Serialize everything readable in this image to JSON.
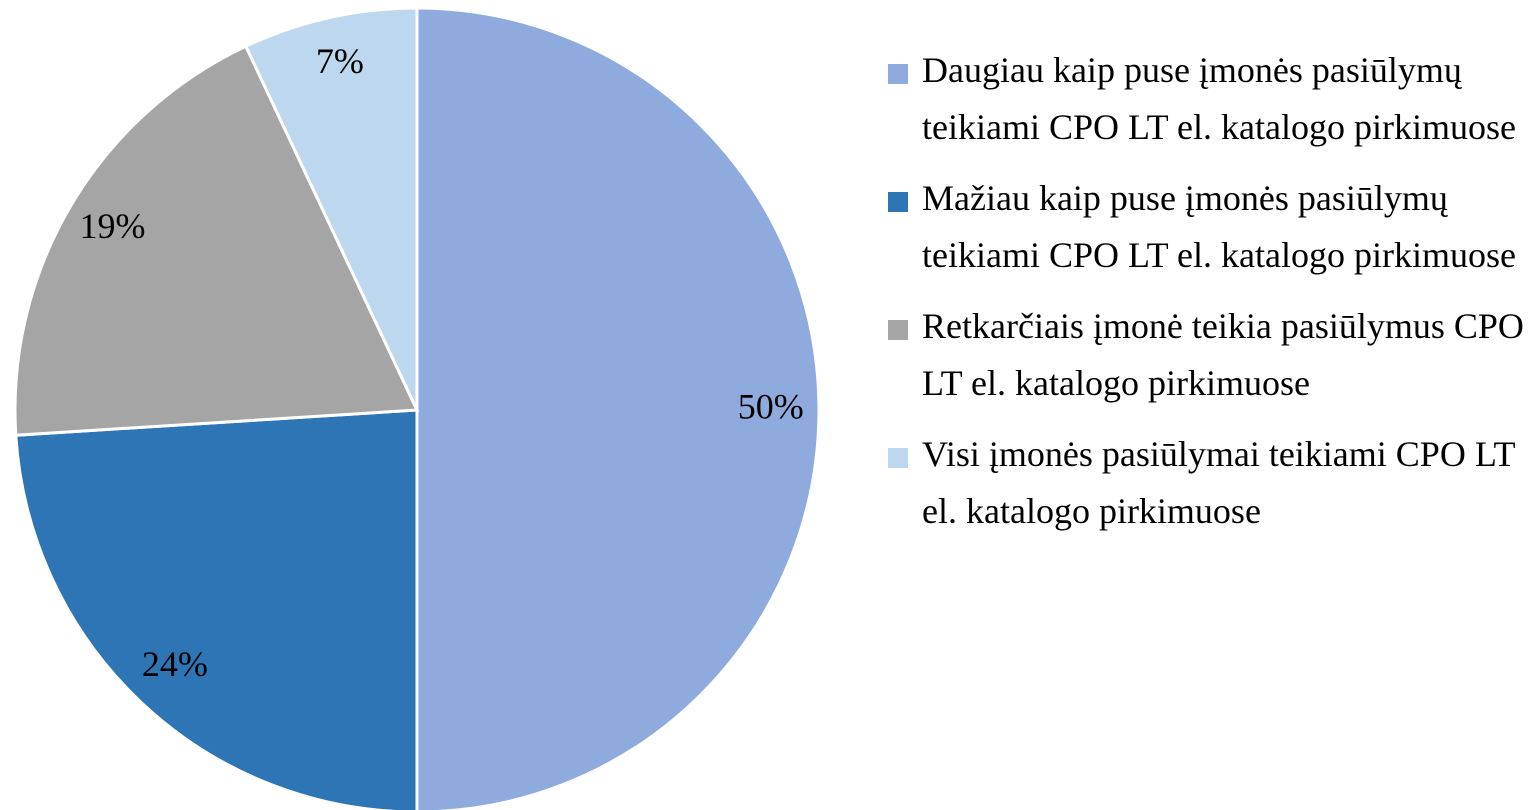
{
  "chart_data": {
    "type": "pie",
    "categories": [
      "Daugiau kaip puse įmonės pasiūlymų teikiami CPO LT el. katalogo pirkimuose",
      "Mažiau kaip puse įmonės pasiūlymų teikiami CPO LT el. katalogo pirkimuose",
      "Retkarčiais įmonė teikia pasiūlymus CPO LT el. katalogo pirkimuose",
      "Visi įmonės pasiūlymai teikiami CPO LT el. katalogo pirkimuose"
    ],
    "values": [
      50,
      24,
      19,
      7
    ],
    "value_labels": [
      "50%",
      "24%",
      "19%",
      "7%"
    ],
    "colors": [
      "#8faadc",
      "#2e75b6",
      "#a5a5a5",
      "#bdd7ee"
    ],
    "legend": "right"
  }
}
